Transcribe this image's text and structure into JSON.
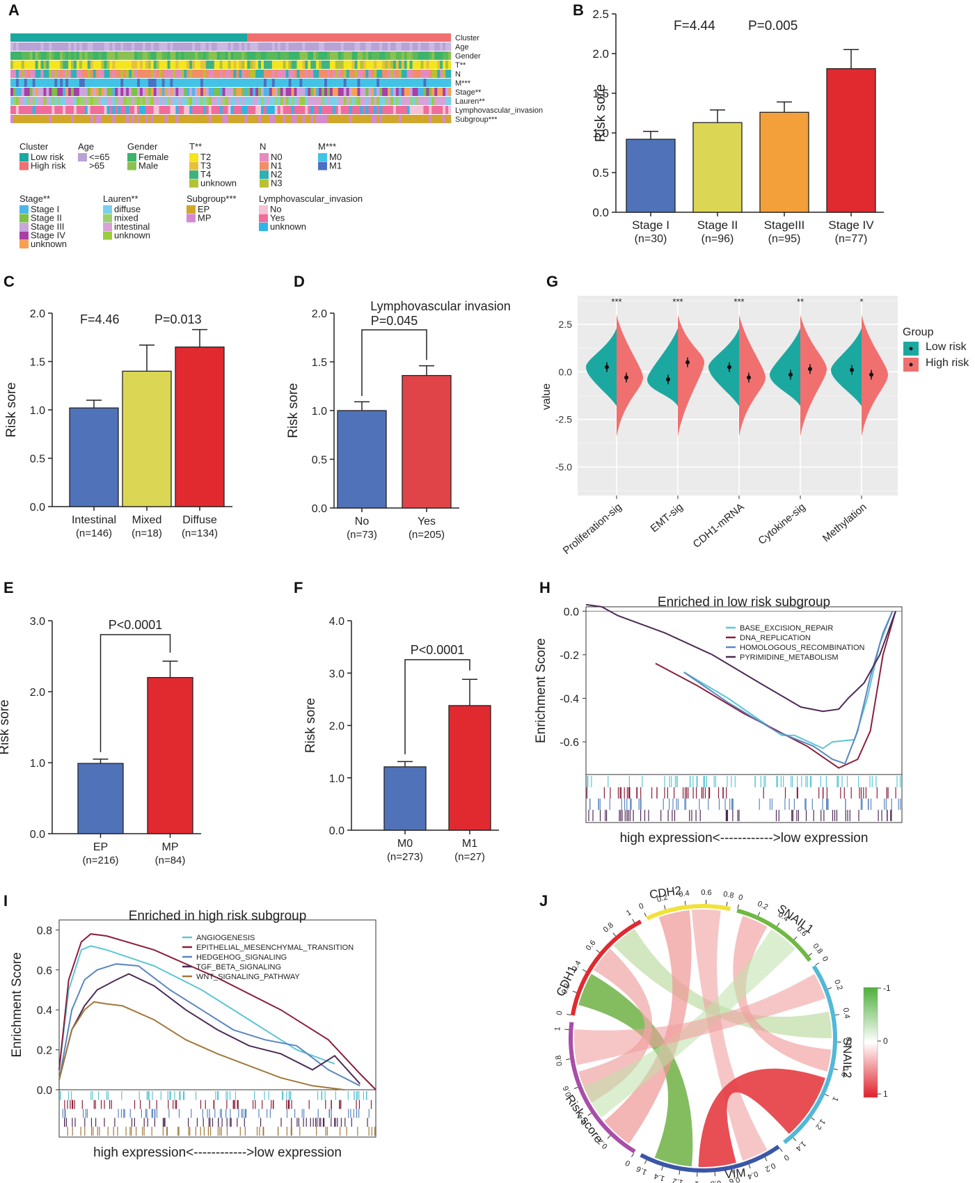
{
  "colors": {
    "blue": "#5072b9",
    "yellow": "#dcd655",
    "orange": "#f3a03a",
    "red": "#e02a30",
    "teal": "#1ba8a0",
    "salmon": "#f07070",
    "green": "#6fb843"
  },
  "panel_letters": [
    "A",
    "B",
    "C",
    "D",
    "E",
    "F",
    "G",
    "H",
    "I",
    "J"
  ],
  "heatmap": {
    "rows": [
      "Cluster",
      "Age",
      "Gender",
      "T**",
      "N",
      "M***",
      "Stage**",
      "Lauren**",
      "Lymphovascular_invasion",
      "Subgroup***"
    ],
    "legend": [
      {
        "title": "Cluster",
        "items": [
          {
            "label": "Low risk",
            "color": "#1ba8a0"
          },
          {
            "label": "High risk",
            "color": "#f07070"
          }
        ]
      },
      {
        "title": "Age",
        "items": [
          {
            "label": "<=65",
            "color": "#b8a3d6"
          },
          {
            "label": ">65",
            "color": "#ffffff"
          }
        ]
      },
      {
        "title": "Gender",
        "items": [
          {
            "label": "Female",
            "color": "#3db36b"
          },
          {
            "label": "Male",
            "color": "#8cc152"
          }
        ]
      },
      {
        "title": "T**",
        "items": [
          {
            "label": "T2",
            "color": "#f4e51c"
          },
          {
            "label": "T3",
            "color": "#e8c13a"
          },
          {
            "label": "T4",
            "color": "#3fb37f"
          },
          {
            "label": "unknown",
            "color": "#b3c234"
          }
        ]
      },
      {
        "title": "N",
        "items": [
          {
            "label": "N0",
            "color": "#e58ac0"
          },
          {
            "label": "N1",
            "color": "#f28d68"
          },
          {
            "label": "N2",
            "color": "#2eb1b5"
          },
          {
            "label": "N3",
            "color": "#b9c031"
          }
        ]
      },
      {
        "title": "M***",
        "items": [
          {
            "label": "M0",
            "color": "#42c3e6"
          },
          {
            "label": "M1",
            "color": "#4a71c4"
          }
        ]
      },
      {
        "title": "Stage**",
        "items": [
          {
            "label": "Stage I",
            "color": "#4cb6e8"
          },
          {
            "label": "Stage II",
            "color": "#7cc144"
          },
          {
            "label": "Stage III",
            "color": "#c9a6db"
          },
          {
            "label": "Stage IV",
            "color": "#a83ea8"
          },
          {
            "label": "unknown",
            "color": "#f7a051"
          }
        ]
      },
      {
        "title": "Lauren**",
        "items": [
          {
            "label": "diffuse",
            "color": "#7ad0ec"
          },
          {
            "label": "mixed",
            "color": "#9dd06e"
          },
          {
            "label": "intestinal",
            "color": "#d7a3d6"
          },
          {
            "label": "unknown",
            "color": "#9acd3b"
          }
        ]
      },
      {
        "title": "Subgroup***",
        "items": [
          {
            "label": "EP",
            "color": "#d1a72b"
          },
          {
            "label": "MP",
            "color": "#d58ad0"
          }
        ]
      },
      {
        "title": "Lymphovascular_invasion",
        "items": [
          {
            "label": "No",
            "color": "#f5c2d7"
          },
          {
            "label": "Yes",
            "color": "#f06c9b"
          },
          {
            "label": "unknown",
            "color": "#2ab7e8"
          }
        ]
      }
    ]
  },
  "chart_data": [
    {
      "id": "B",
      "type": "bar",
      "title": "",
      "stats": [
        "F=4.44",
        "P=0.005"
      ],
      "ylabel": "Risk sore",
      "ylim": [
        0,
        2.5
      ],
      "yticks": [
        "0.0",
        "0.5",
        "1.0",
        "1.5",
        "2.0",
        "2.5"
      ],
      "categories": [
        [
          "Stage I",
          "(n=30)"
        ],
        [
          "Stage II",
          "(n=96)"
        ],
        [
          "StageIII",
          "(n=95)"
        ],
        [
          "Stage IV",
          "(n=77)"
        ]
      ],
      "values": [
        0.92,
        1.13,
        1.26,
        1.81
      ],
      "errors": [
        0.1,
        0.16,
        0.13,
        0.24
      ],
      "colors": [
        "#5072b9",
        "#dcd655",
        "#f3a03a",
        "#e02a30"
      ]
    },
    {
      "id": "C",
      "type": "bar",
      "title": "",
      "stats": [
        "F=4.46",
        "P=0.013"
      ],
      "ylabel": "Risk sore",
      "ylim": [
        0,
        2.0
      ],
      "yticks": [
        "0.0",
        "0.5",
        "1.0",
        "1.5",
        "2.0"
      ],
      "categories": [
        [
          "Intestinal",
          "(n=146)"
        ],
        [
          "Mixed",
          "(n=18)"
        ],
        [
          "Diffuse",
          "(n=134)"
        ]
      ],
      "values": [
        1.02,
        1.4,
        1.65
      ],
      "errors": [
        0.08,
        0.27,
        0.18
      ],
      "colors": [
        "#5072b9",
        "#dcd655",
        "#e02a30"
      ]
    },
    {
      "id": "D",
      "type": "bar",
      "title": "Lymphovascular invasion",
      "stats": [
        "P=0.045"
      ],
      "ylabel": "Risk sore",
      "ylim": [
        0,
        2.0
      ],
      "yticks": [
        "0.0",
        "0.5",
        "1.0",
        "1.5",
        "2.0"
      ],
      "categories": [
        [
          "No",
          "(n=73)"
        ],
        [
          "Yes",
          "(n=205)"
        ]
      ],
      "values": [
        1.0,
        1.36
      ],
      "errors": [
        0.09,
        0.1
      ],
      "colors": [
        "#5072b9",
        "#e04448"
      ]
    },
    {
      "id": "E",
      "type": "bar",
      "title": "",
      "stats": [
        "P<0.0001"
      ],
      "ylabel": "Risk sore",
      "ylim": [
        0,
        3.0
      ],
      "yticks": [
        "0.0",
        "1.0",
        "2.0",
        "3.0"
      ],
      "categories": [
        [
          "EP",
          "(n=216)"
        ],
        [
          "MP",
          "(n=84)"
        ]
      ],
      "values": [
        0.99,
        2.2
      ],
      "errors": [
        0.06,
        0.23
      ],
      "colors": [
        "#5072b9",
        "#e02a30"
      ]
    },
    {
      "id": "F",
      "type": "bar",
      "title": "",
      "stats": [
        "P<0.0001"
      ],
      "ylabel": "Risk sore",
      "ylim": [
        0,
        4.0
      ],
      "yticks": [
        "0.0",
        "1.0",
        "2.0",
        "3.0",
        "4.0"
      ],
      "categories": [
        [
          "M0",
          "(n=273)"
        ],
        [
          "M1",
          "(n=27)"
        ]
      ],
      "values": [
        1.21,
        2.38
      ],
      "errors": [
        0.1,
        0.5
      ],
      "colors": [
        "#5072b9",
        "#e02a30"
      ]
    },
    {
      "id": "G",
      "type": "violin",
      "ylabel": "value",
      "yticks": [
        "2.5",
        "0.0",
        "-2.5",
        "-5.0"
      ],
      "ylim": [
        -6.5,
        4
      ],
      "categories": [
        "Proliferation-sig",
        "EMT-sig",
        "CDH1-mRNA",
        "Cytokine-sig",
        "Methylation"
      ],
      "significance": [
        "***",
        "***",
        "***",
        "**",
        "*"
      ],
      "low_risk_means": [
        0.25,
        -0.4,
        0.25,
        -0.15,
        0.1
      ],
      "high_risk_means": [
        -0.3,
        0.5,
        -0.3,
        0.15,
        -0.15
      ],
      "legend_title": "Group",
      "legend": [
        "Low risk",
        "High risk"
      ]
    },
    {
      "id": "H",
      "type": "line",
      "title": "Enriched in low risk subgroup",
      "ylabel": "Enrichment Score",
      "yticks": [
        "0.0",
        "-0.2",
        "-0.4",
        "-0.6"
      ],
      "ylim": [
        -0.75,
        0.02
      ],
      "xlabel": "high expression<------------>low expression",
      "series": [
        {
          "name": "BASE_EXCISION_REPAIR",
          "color": "#5bc6d3",
          "points": [
            [
              0.31,
              -0.28
            ],
            [
              0.45,
              -0.4
            ],
            [
              0.55,
              -0.5
            ],
            [
              0.62,
              -0.57
            ],
            [
              0.66,
              -0.57
            ],
            [
              0.75,
              -0.63
            ],
            [
              0.78,
              -0.6
            ],
            [
              0.85,
              -0.59
            ],
            [
              0.89,
              -0.4
            ],
            [
              0.93,
              -0.15
            ],
            [
              0.97,
              0
            ]
          ]
        },
        {
          "name": "DNA_REPLICATION",
          "color": "#8a1f3a",
          "points": [
            [
              0.22,
              -0.24
            ],
            [
              0.35,
              -0.34
            ],
            [
              0.5,
              -0.47
            ],
            [
              0.7,
              -0.62
            ],
            [
              0.8,
              -0.72
            ],
            [
              0.86,
              -0.68
            ],
            [
              0.9,
              -0.55
            ],
            [
              0.94,
              -0.2
            ],
            [
              0.98,
              0
            ]
          ]
        },
        {
          "name": "HOMOLOGOUS_RECOMBINATION",
          "color": "#5b86c2",
          "points": [
            [
              0.31,
              -0.28
            ],
            [
              0.45,
              -0.42
            ],
            [
              0.6,
              -0.55
            ],
            [
              0.72,
              -0.62
            ],
            [
              0.78,
              -0.68
            ],
            [
              0.82,
              -0.7
            ],
            [
              0.86,
              -0.55
            ],
            [
              0.9,
              -0.3
            ],
            [
              0.94,
              -0.1
            ],
            [
              0.97,
              0
            ]
          ]
        },
        {
          "name": "PYRIMIDINE_METABOLISM",
          "color": "#4c2a55",
          "points": [
            [
              0.0,
              0.03
            ],
            [
              0.05,
              0.02
            ],
            [
              0.1,
              -0.02
            ],
            [
              0.25,
              -0.1
            ],
            [
              0.4,
              -0.2
            ],
            [
              0.55,
              -0.33
            ],
            [
              0.68,
              -0.44
            ],
            [
              0.75,
              -0.46
            ],
            [
              0.8,
              -0.45
            ],
            [
              0.83,
              -0.4
            ],
            [
              0.88,
              -0.33
            ],
            [
              0.93,
              -0.2
            ],
            [
              0.96,
              -0.08
            ],
            [
              0.98,
              0
            ]
          ]
        }
      ]
    },
    {
      "id": "I",
      "type": "line",
      "title": "Enriched in high risk subgroup",
      "ylabel": "Enrichment Score",
      "yticks": [
        "0.0",
        "0.2",
        "0.4",
        "0.6",
        "0.8"
      ],
      "ylim": [
        0,
        0.85
      ],
      "xlabel": "high expression<------------>low expression",
      "series": [
        {
          "name": "ANGIOGENESIS",
          "color": "#5bc6d3",
          "points": [
            [
              0.0,
              0.1
            ],
            [
              0.03,
              0.5
            ],
            [
              0.07,
              0.7
            ],
            [
              0.1,
              0.72
            ],
            [
              0.15,
              0.7
            ],
            [
              0.3,
              0.62
            ],
            [
              0.45,
              0.5
            ],
            [
              0.6,
              0.35
            ],
            [
              0.75,
              0.2
            ],
            [
              0.87,
              0.13
            ]
          ]
        },
        {
          "name": "EPITHELIAL_MESENCHYMAL_TRANSITION",
          "color": "#8a1f3a",
          "points": [
            [
              0.0,
              0.1
            ],
            [
              0.03,
              0.55
            ],
            [
              0.07,
              0.74
            ],
            [
              0.1,
              0.78
            ],
            [
              0.15,
              0.77
            ],
            [
              0.3,
              0.7
            ],
            [
              0.5,
              0.56
            ],
            [
              0.7,
              0.4
            ],
            [
              0.85,
              0.25
            ],
            [
              0.95,
              0.08
            ],
            [
              1.0,
              0
            ]
          ]
        },
        {
          "name": "HEDGEHOG_SIGNALING",
          "color": "#5b86c2",
          "points": [
            [
              0.0,
              0.05
            ],
            [
              0.04,
              0.4
            ],
            [
              0.08,
              0.55
            ],
            [
              0.12,
              0.6
            ],
            [
              0.18,
              0.63
            ],
            [
              0.25,
              0.62
            ],
            [
              0.35,
              0.5
            ],
            [
              0.45,
              0.4
            ],
            [
              0.55,
              0.3
            ],
            [
              0.65,
              0.25
            ],
            [
              0.75,
              0.22
            ],
            [
              0.85,
              0.1
            ],
            [
              0.95,
              0.02
            ]
          ]
        },
        {
          "name": "TGF_BETA_SIGNALING",
          "color": "#4c2a55",
          "points": [
            [
              0.0,
              0.05
            ],
            [
              0.04,
              0.3
            ],
            [
              0.08,
              0.42
            ],
            [
              0.12,
              0.5
            ],
            [
              0.18,
              0.55
            ],
            [
              0.22,
              0.58
            ],
            [
              0.3,
              0.52
            ],
            [
              0.4,
              0.4
            ],
            [
              0.5,
              0.3
            ],
            [
              0.6,
              0.22
            ],
            [
              0.7,
              0.18
            ],
            [
              0.8,
              0.1
            ],
            [
              0.87,
              0.17
            ],
            [
              0.95,
              0.03
            ]
          ]
        },
        {
          "name": "WNT_SIGNALING_PATHWAY",
          "color": "#a0783a",
          "points": [
            [
              0.0,
              0.05
            ],
            [
              0.04,
              0.3
            ],
            [
              0.08,
              0.4
            ],
            [
              0.11,
              0.44
            ],
            [
              0.15,
              0.43
            ],
            [
              0.2,
              0.42
            ],
            [
              0.3,
              0.35
            ],
            [
              0.4,
              0.25
            ],
            [
              0.5,
              0.18
            ],
            [
              0.6,
              0.12
            ],
            [
              0.7,
              0.06
            ],
            [
              0.8,
              0.02
            ],
            [
              0.9,
              0
            ]
          ]
        }
      ]
    },
    {
      "id": "J",
      "type": "chord",
      "segments": [
        {
          "name": "CDH1",
          "color": "#e02a30",
          "ticks": [
            "0",
            "0.2",
            "0.4",
            "0.6",
            "0.8",
            "1"
          ]
        },
        {
          "name": "CDH2",
          "color": "#f3e13a",
          "ticks": [
            "0",
            "0.2",
            "0.4",
            "0.6",
            "0.8"
          ]
        },
        {
          "name": "SNAIL1",
          "color": "#6fb843",
          "ticks": [
            "0",
            "0.2",
            "0.4",
            "0.6",
            "0.8"
          ]
        },
        {
          "name": "SNAIL2",
          "color": "#52b8d8",
          "ticks": [
            "0",
            "0.2",
            "0.4",
            "0.6",
            "0.8",
            "1",
            "1.2",
            "1.4"
          ]
        },
        {
          "name": "VIM",
          "color": "#3b56a8",
          "ticks": [
            "0",
            "0.2",
            "0.4",
            "0.6",
            "0.8",
            "1",
            "1.2",
            "1.4",
            "1.6"
          ]
        },
        {
          "name": "Risk score",
          "color": "#a84ea8",
          "ticks": [
            "0",
            "0.2",
            "0.4",
            "0.6",
            "0.8",
            "1"
          ]
        }
      ],
      "colorbar_labels": [
        "-1",
        "0",
        "1"
      ]
    }
  ]
}
